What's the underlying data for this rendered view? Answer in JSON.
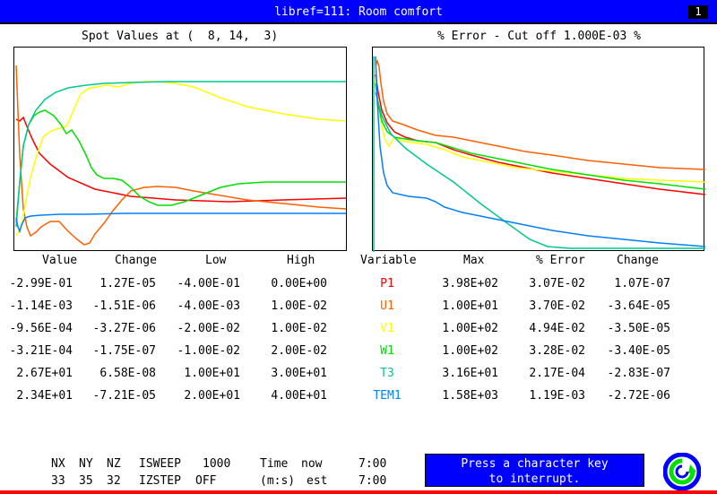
{
  "title_bar": {
    "title": "libref=111: Room comfort",
    "page_number": "1"
  },
  "left_panel": {
    "title": "Spot Values at (  8, 14,  3)"
  },
  "right_panel": {
    "title": "% Error - Cut off 1.000E-03 %"
  },
  "table": {
    "left_headers": [
      "Value",
      "Change",
      "Low",
      "High"
    ],
    "right_headers": [
      "Variable",
      "Max",
      "% Error",
      "Change"
    ],
    "rows": [
      {
        "value": "-2.99E-01",
        "change": "1.27E-05",
        "low": "-4.00E-01",
        "high": "0.00E+00",
        "variable": "P1",
        "color": "#ff0000",
        "max": "3.98E+02",
        "error": "3.07E-02",
        "change2": "1.07E-07"
      },
      {
        "value": "-1.14E-03",
        "change": "-1.51E-06",
        "low": "-4.00E-03",
        "high": "1.00E-02",
        "variable": "U1",
        "color": "#ff6000",
        "max": "1.00E+01",
        "error": "3.70E-02",
        "change2": "-3.64E-05"
      },
      {
        "value": "-9.56E-04",
        "change": "-3.27E-06",
        "low": "-2.00E-02",
        "high": "1.00E-02",
        "variable": "V1",
        "color": "#ffff00",
        "max": "1.00E+02",
        "error": "4.94E-02",
        "change2": "-3.50E-05"
      },
      {
        "value": "-3.21E-04",
        "change": "-1.75E-07",
        "low": "-1.00E-02",
        "high": "2.00E-02",
        "variable": "W1",
        "color": "#00e000",
        "max": "1.00E+02",
        "error": "3.28E-02",
        "change2": "-3.40E-05"
      },
      {
        "value": "2.67E+01",
        "change": "6.58E-08",
        "low": "1.00E+01",
        "high": "3.00E+01",
        "variable": "T3",
        "color": "#00c890",
        "max": "3.16E+01",
        "error": "2.17E-04",
        "change2": "-2.83E-07"
      },
      {
        "value": "2.34E+01",
        "change": "-7.21E-05",
        "low": "2.00E+01",
        "high": "4.00E+01",
        "variable": "TEM1",
        "color": "#0080ff",
        "max": "1.58E+03",
        "error": "1.19E-03",
        "change2": "-2.72E-06"
      }
    ]
  },
  "bottom": {
    "nx_label": "NX",
    "ny_label": "NY",
    "nz_label": "NZ",
    "nx": "33",
    "ny": "35",
    "nz": "32",
    "isweep_label": "ISWEEP",
    "isweep": "1000",
    "izstep_label": "IZSTEP",
    "izstep": "OFF",
    "time_label": "Time",
    "now_label": "now",
    "time_now": "7:00",
    "ms_label": "(m:s)",
    "est_label": "est",
    "time_est": "7:00",
    "press_line1": "Press a character key",
    "press_line2": "to interrupt."
  },
  "colors": {
    "title_bg": "#0000ff",
    "p1": "#ff0000",
    "u1": "#ff6000",
    "v1": "#ffff00",
    "w1": "#00e000",
    "t3": "#00c890",
    "tem1": "#0080ff"
  }
}
